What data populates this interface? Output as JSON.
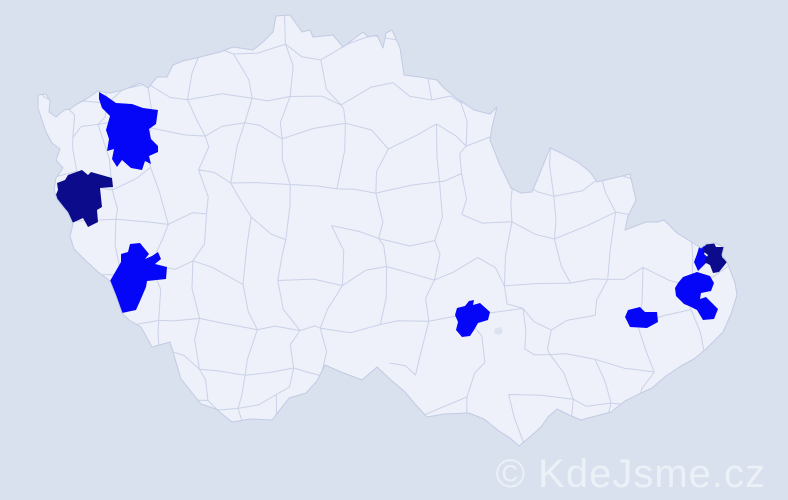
{
  "watermark": {
    "text": "© KdeJsme.cz"
  },
  "colors": {
    "background": "#d9e1ee",
    "map_fill": "#eef1f9",
    "district_border": "#c7cfe8",
    "country_outline": "#c2cbe4",
    "highlight_blue": "#0505f7",
    "highlight_navy": "#0b0b8b",
    "city_enclave": "#dde2f0",
    "watermark_color": "#f0f3f9"
  },
  "map": {
    "region": "Czech Republic district map",
    "highlighted_districts": [
      {
        "id": "northwest",
        "color": "bright-blue"
      },
      {
        "id": "west",
        "color": "dark-navy"
      },
      {
        "id": "southwest",
        "color": "bright-blue"
      },
      {
        "id": "south-moravia",
        "color": "bright-blue"
      },
      {
        "id": "east-moravia",
        "color": "bright-blue"
      },
      {
        "id": "northeast-large",
        "color": "bright-blue"
      },
      {
        "id": "northeast-small",
        "color": "bright-blue"
      },
      {
        "id": "northeast-corner",
        "color": "dark-navy"
      }
    ]
  }
}
